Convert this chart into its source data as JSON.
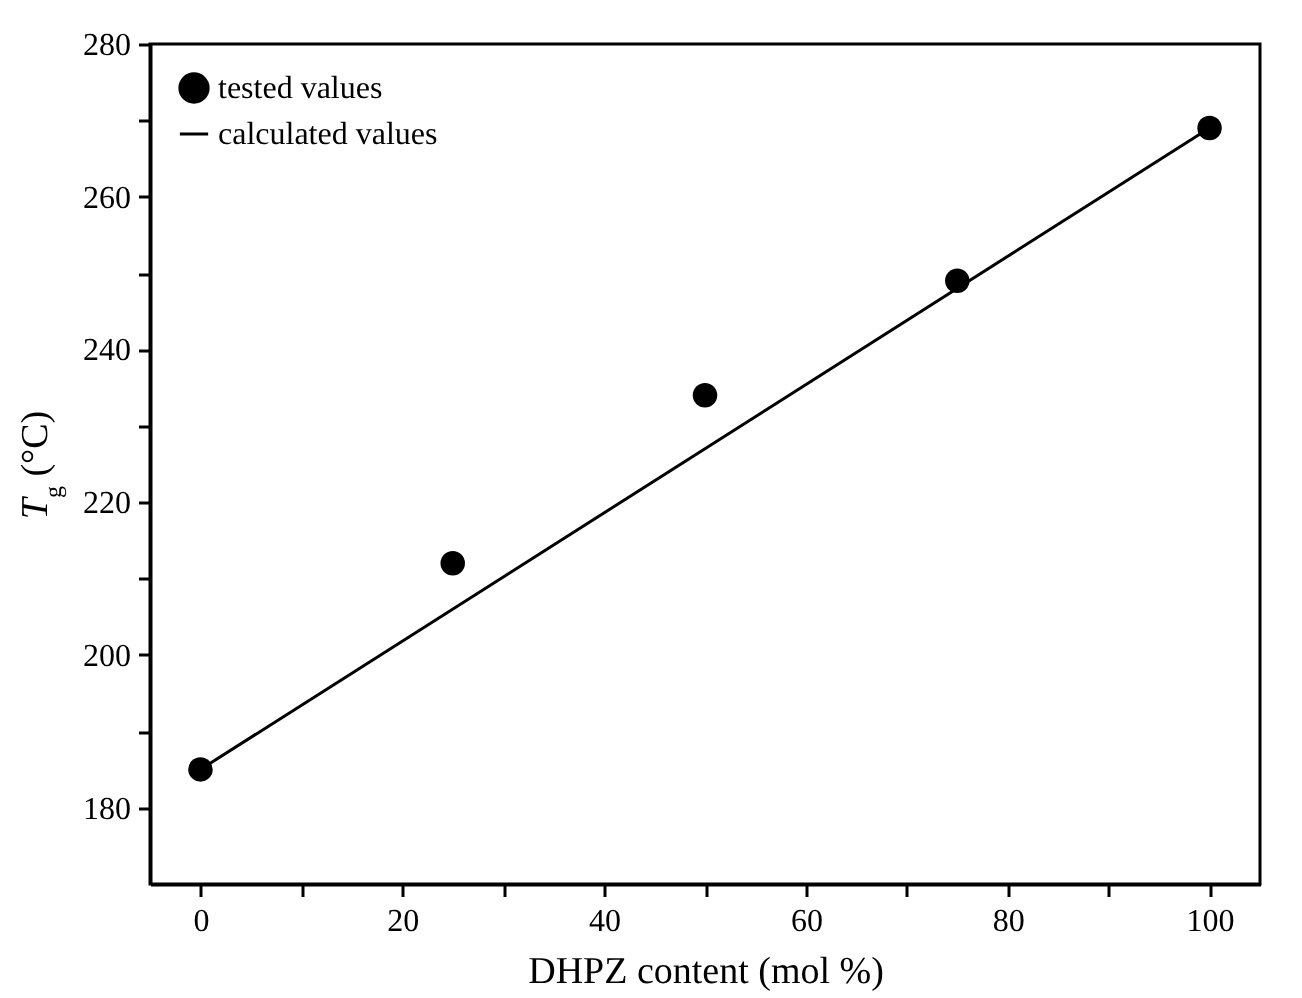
{
  "chart_data": {
    "type": "scatter",
    "xlabel": "DHPZ content (mol %)",
    "ylabel": "T$_{g}$ (°C)",
    "xlim": [
      -5,
      105
    ],
    "ylim": [
      170,
      280
    ],
    "xticks": [
      0,
      {
        "value": 10,
        "label": null
      },
      20,
      {
        "value": 30,
        "label": null
      },
      40,
      {
        "value": 50,
        "label": null
      },
      60,
      {
        "value": 70,
        "label": null
      },
      80,
      {
        "value": 90,
        "label": null
      },
      100
    ],
    "yticks": [
      180,
      {
        "value": 190,
        "label": null
      },
      200,
      {
        "value": 210,
        "label": null
      },
      220,
      {
        "value": 230,
        "label": null
      },
      240,
      {
        "value": 250,
        "label": null
      },
      260,
      {
        "value": 270,
        "label": null
      },
      280
    ],
    "grid": false,
    "legend": "top left",
    "series": [
      {
        "name": "tested  values",
        "color": "#000000",
        "marker": "circle",
        "x": [
          0,
          25,
          50,
          75,
          100
        ],
        "values": [
          185,
          212,
          234,
          249,
          269
        ]
      },
      {
        "name": "calculated values",
        "type": "line",
        "color": "#000000",
        "line_style": "solid",
        "marker": "none",
        "x": [
          0,
          100
        ],
        "values": [
          185,
          269
        ]
      }
    ]
  }
}
